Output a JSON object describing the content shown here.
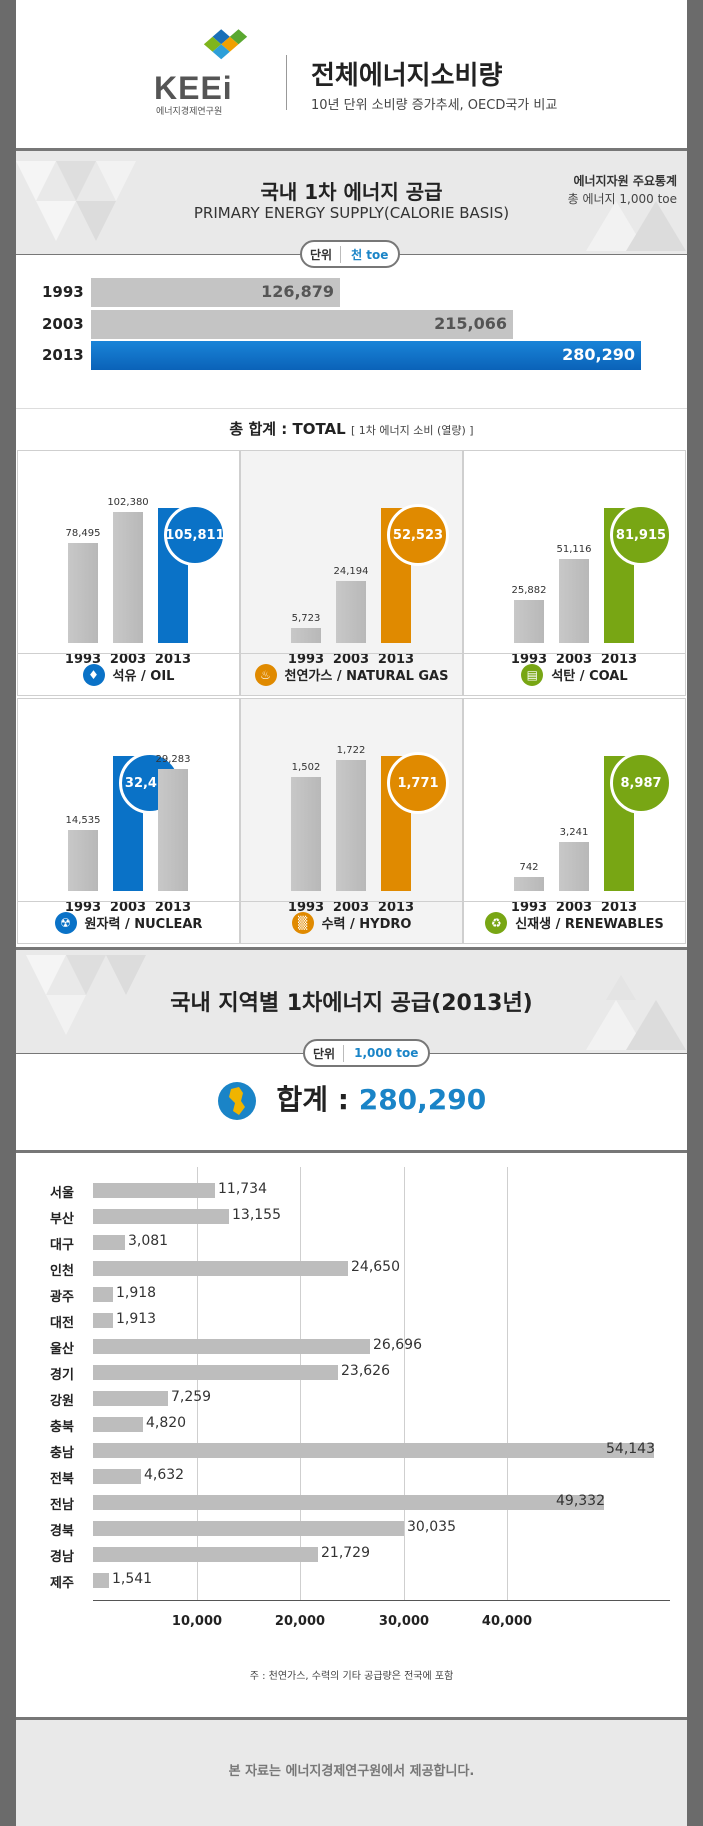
{
  "header": {
    "logo_text": "KEEi",
    "logo_sub": "에너지경제연구원",
    "title": "전체에너지소비량",
    "subtitle": "10년 단위 소비량 증가추세, OECD국가 비교"
  },
  "section1": {
    "title": "국내 1차 에너지 공급",
    "subtitle": "PRIMARY ENERGY SUPPLY(CALORIE BASIS)",
    "side_title": "에너지자원 주요통계",
    "side_sub": "총 에너지 1,000 toe",
    "unit_label": "단위",
    "unit_value": "천 toe",
    "total_label": "총 합계 : TOTAL",
    "total_note": "[ 1차 에너지 소비 (열량) ]"
  },
  "section2": {
    "title": "국내 지역별 1차에너지 공급(2013년)",
    "unit_label": "단위",
    "unit_value": "1,000 toe",
    "sum_label": "합계 :",
    "sum_value": "280,290",
    "note": "주 : 천연가스, 수력의 기타 공급량은 전국에 포함"
  },
  "footer": {
    "text": "본 자료는 에너지경제연구원에서 제공합니다."
  },
  "colors": {
    "blue": "#0a72c7",
    "orange": "#e08a00",
    "green": "#78a614",
    "gray": "#bdbdbd",
    "accent": "#1a84c7"
  },
  "chart_data": [
    {
      "type": "bar",
      "orientation": "horizontal",
      "categories": [
        "1993",
        "2003",
        "2013"
      ],
      "values": [
        126879,
        215066,
        280290
      ],
      "labels": [
        "126,879",
        "215,066",
        "280,290"
      ]
    },
    {
      "type": "bar",
      "panels": [
        {
          "name": "석유 / OIL",
          "icon": "oil-drop-icon",
          "color": "#0a72c7",
          "categories": [
            "1993",
            "2003",
            "2013"
          ],
          "values": [
            78495,
            102380,
            105811
          ],
          "labels": [
            "78,495",
            "102,380",
            "105,811"
          ]
        },
        {
          "name": "천연가스 / NATURAL GAS",
          "icon": "flame-icon",
          "color": "#e08a00",
          "categories": [
            "1993",
            "2003",
            "2013"
          ],
          "values": [
            5723,
            24194,
            52523
          ],
          "labels": [
            "5,723",
            "24,194",
            "52,523"
          ]
        },
        {
          "name": "석탄 / COAL",
          "icon": "coal-cart-icon",
          "color": "#78a614",
          "categories": [
            "1993",
            "2003",
            "2013"
          ],
          "values": [
            25882,
            51116,
            81915
          ],
          "labels": [
            "25,882",
            "51,116",
            "81,915"
          ]
        },
        {
          "name": "원자력 / NUCLEAR",
          "icon": "radiation-icon",
          "color": "#0a72c7",
          "categories": [
            "1993",
            "2003",
            "2013"
          ],
          "values": [
            14535,
            32415,
            29283
          ],
          "labels": [
            "14,535",
            "32,415",
            "29,283"
          ],
          "highlight": 1
        },
        {
          "name": "수력 / HYDRO",
          "icon": "dam-icon",
          "color": "#e08a00",
          "categories": [
            "1993",
            "2003",
            "2013"
          ],
          "values": [
            1502,
            1722,
            1771
          ],
          "labels": [
            "1,502",
            "1,722",
            "1,771"
          ]
        },
        {
          "name": "신재생 / RENEWABLES",
          "icon": "recycle-icon",
          "color": "#78a614",
          "categories": [
            "1993",
            "2003",
            "2013"
          ],
          "values": [
            742,
            3241,
            8987
          ],
          "labels": [
            "742",
            "3,241",
            "8,987"
          ]
        }
      ]
    },
    {
      "type": "bar",
      "orientation": "horizontal",
      "categories": [
        "서울",
        "부산",
        "대구",
        "인천",
        "광주",
        "대전",
        "울산",
        "경기",
        "강원",
        "충북",
        "충남",
        "전북",
        "전남",
        "경북",
        "경남",
        "제주"
      ],
      "values": [
        11734,
        13155,
        3081,
        24650,
        1918,
        1913,
        26696,
        23626,
        7259,
        4820,
        54143,
        4632,
        49332,
        30035,
        21729,
        1541
      ],
      "labels": [
        "11,734",
        "13,155",
        "3,081",
        "24,650",
        "1,918",
        "1,913",
        "26,696",
        "23,626",
        "7,259",
        "4,820",
        "54,143",
        "4,632",
        "49,332",
        "30,035",
        "21,729",
        "1,541"
      ],
      "xticks": [
        "10,000",
        "20,000",
        "30,000",
        "40,000"
      ],
      "xlim": [
        0,
        55000
      ]
    }
  ]
}
